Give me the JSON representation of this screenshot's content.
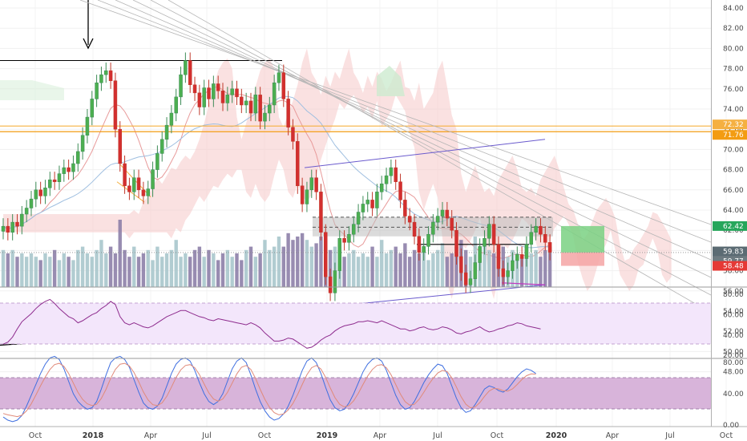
{
  "chart_data": [
    {
      "type": "candlestick",
      "title": "",
      "ylim": [
        48,
        85
      ],
      "y_ticks": [
        "84.00",
        "82.00",
        "80.00",
        "78.00",
        "76.00",
        "74.00",
        "72.00",
        "70.00",
        "68.00",
        "66.00",
        "64.00",
        "62.00",
        "60.00",
        "58.00",
        "56.00",
        "54.00",
        "52.00",
        "50.00",
        "48.00"
      ],
      "x_ticks": [
        {
          "label": "Oct",
          "year": false
        },
        {
          "label": "2018",
          "year": true
        },
        {
          "label": "Apr",
          "year": false
        },
        {
          "label": "Jul",
          "year": false
        },
        {
          "label": "Oct",
          "year": false
        },
        {
          "label": "2019",
          "year": true
        },
        {
          "label": "Apr",
          "year": false
        },
        {
          "label": "Jul",
          "year": false
        },
        {
          "label": "Oct",
          "year": false
        },
        {
          "label": "2020",
          "year": true
        },
        {
          "label": "Apr",
          "year": false
        },
        {
          "label": "Jul",
          "year": false
        },
        {
          "label": "Oct",
          "year": false
        }
      ],
      "price_tags": [
        {
          "text": "72.32",
          "value": 72.32,
          "color": "#f5b041"
        },
        {
          "text": "71.76",
          "value": 71.76,
          "color": "#f39c12"
        },
        {
          "text": "62.42",
          "value": 62.42,
          "color": "#26a65b"
        },
        {
          "text": "59.83",
          "value": 59.83,
          "color": "#5b6b73"
        },
        {
          "text": "59.77",
          "value": 59.77,
          "color": "#6d7a80"
        },
        {
          "text": "58.48",
          "value": 58.48,
          "color": "#e53935"
        }
      ],
      "key_levels": {
        "top_resistance": 78.8,
        "orange_1": 72.32,
        "orange_2": 71.76,
        "current_dotted": 59.8
      },
      "candles_weekly_close_approx": [
        62.4,
        61.8,
        62.8,
        62.4,
        63.6,
        64.2,
        65.1,
        66.0,
        65.4,
        66.2,
        67.0,
        66.8,
        67.6,
        68.2,
        67.8,
        68.6,
        69.8,
        71.4,
        73.2,
        75.0,
        76.6,
        77.4,
        77.8,
        76.8,
        72.0,
        68.6,
        66.4,
        65.8,
        67.2,
        66.0,
        65.4,
        66.1,
        68.0,
        69.6,
        71.0,
        72.4,
        73.6,
        75.2,
        77.4,
        78.8,
        76.4,
        75.6,
        74.2,
        76.1,
        75.0,
        76.5,
        75.8,
        74.6,
        75.4,
        76.0,
        75.2,
        74.4,
        74.8,
        73.6,
        75.4,
        72.8,
        73.6,
        74.4,
        76.6,
        77.6,
        75.0,
        72.2,
        70.8,
        66.4,
        64.6,
        66.0,
        67.2,
        65.8,
        61.8,
        57.4,
        55.8,
        58.0,
        61.2,
        60.8,
        61.6,
        62.6,
        63.8,
        64.6,
        65.0,
        64.2,
        65.8,
        66.6,
        67.4,
        68.2,
        66.8,
        65.0,
        63.4,
        62.8,
        61.4,
        59.8,
        60.4,
        61.6,
        62.8,
        63.4,
        64.0,
        63.2,
        62.0,
        59.4,
        57.8,
        56.6,
        57.2,
        58.8,
        60.4,
        61.2,
        62.6,
        60.6,
        58.2,
        57.4,
        58.0,
        59.0,
        59.6,
        59.2,
        60.6,
        61.8,
        62.4,
        61.6,
        60.8,
        59.83
      ],
      "volume_relative": [
        0.55,
        0.5,
        0.55,
        0.45,
        0.5,
        0.45,
        0.5,
        0.45,
        0.4,
        0.5,
        0.45,
        0.55,
        0.4,
        0.5,
        0.45,
        0.4,
        0.55,
        0.6,
        0.5,
        0.45,
        0.55,
        0.7,
        0.5,
        0.6,
        0.5,
        1.0,
        0.55,
        0.45,
        0.6,
        0.45,
        0.5,
        0.55,
        0.4,
        0.6,
        0.45,
        0.5,
        0.55,
        0.7,
        0.45,
        0.5,
        0.45,
        0.55,
        0.6,
        0.45,
        0.55,
        0.5,
        0.4,
        0.5,
        0.55,
        0.45,
        0.5,
        0.4,
        0.55,
        0.6,
        0.45,
        0.5,
        0.7,
        0.55,
        0.6,
        0.75,
        0.6,
        0.8,
        0.7,
        0.75,
        0.8,
        0.7,
        0.6,
        0.65,
        0.75,
        0.6,
        0.55,
        0.6,
        0.5,
        0.45,
        0.5,
        0.55,
        0.45,
        0.5,
        0.45,
        0.6,
        0.45,
        0.7,
        0.5,
        0.55,
        0.6,
        0.5,
        0.65,
        0.45,
        0.55,
        0.5,
        0.6,
        0.4,
        0.5,
        0.55,
        0.65,
        0.45,
        0.5,
        0.6,
        0.7,
        0.55,
        0.45,
        0.75,
        0.5,
        0.6,
        0.55,
        0.5,
        0.45,
        0.6,
        0.45,
        0.55,
        0.5,
        0.45,
        0.6,
        0.5,
        0.55,
        0.45,
        0.55,
        0.6
      ]
    },
    {
      "type": "line",
      "title": "",
      "ylim": [
        15,
        85
      ],
      "y_ticks": [
        "80.00",
        "60.00",
        "40.00",
        "20.00"
      ],
      "bands": [
        30,
        70
      ],
      "series_values_approx": [
        31,
        33,
        38,
        46,
        53,
        57,
        61,
        66,
        70,
        73,
        75,
        71,
        66,
        62,
        58,
        56,
        52,
        54,
        57,
        60,
        62,
        66,
        69,
        73,
        70,
        58,
        52,
        50,
        52,
        50,
        48,
        47,
        49,
        52,
        55,
        58,
        60,
        62,
        64,
        64,
        62,
        60,
        58,
        57,
        55,
        54,
        56,
        55,
        54,
        53,
        52,
        51,
        50,
        52,
        50,
        47,
        42,
        38,
        34,
        34,
        35,
        37,
        36,
        33,
        30,
        27,
        28,
        31,
        35,
        38,
        40,
        44,
        47,
        49,
        50,
        51,
        53,
        53,
        54,
        53,
        52,
        54,
        52,
        50,
        48,
        46,
        46,
        44,
        45,
        47,
        48,
        46,
        45,
        46,
        48,
        47,
        45,
        42,
        41,
        43,
        44,
        46,
        48,
        45,
        43,
        44,
        46,
        47,
        49,
        50,
        52,
        51,
        49,
        48,
        47,
        46
      ]
    },
    {
      "type": "line",
      "title": "",
      "ylim": [
        -10,
        100
      ],
      "y_ticks": [
        "80.00",
        "40.00",
        "0.00"
      ],
      "bands": [
        20,
        80
      ],
      "series_values_approx": [
        10,
        6,
        4,
        6,
        12,
        24,
        38,
        52,
        66,
        78,
        86,
        88,
        84,
        72,
        56,
        40,
        30,
        24,
        20,
        22,
        30,
        46,
        64,
        80,
        86,
        88,
        84,
        74,
        58,
        42,
        28,
        22,
        20,
        24,
        34,
        50,
        66,
        78,
        84,
        86,
        82,
        70,
        54,
        40,
        30,
        26,
        30,
        40,
        56,
        72,
        82,
        86,
        80,
        64,
        46,
        30,
        18,
        10,
        6,
        8,
        14,
        24,
        38,
        54,
        70,
        82,
        86,
        80,
        66,
        48,
        32,
        22,
        18,
        20,
        28,
        40,
        54,
        68,
        78,
        84,
        86,
        82,
        70,
        54,
        38,
        26,
        20,
        22,
        30,
        42,
        54,
        64,
        72,
        78,
        76,
        66,
        50,
        34,
        22,
        16,
        18,
        26,
        36,
        46,
        50,
        48,
        44,
        42,
        46,
        54,
        62,
        68,
        72,
        70,
        66
      ]
    }
  ]
}
